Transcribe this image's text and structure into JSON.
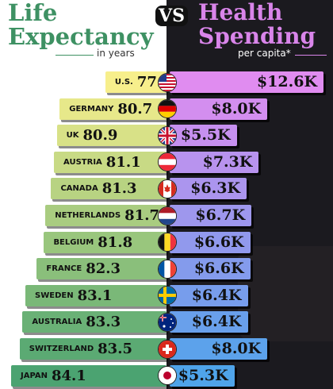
{
  "titles": {
    "left_line1": "Life",
    "left_line2": "Expectancy",
    "left_sub": "in years",
    "vs": "VS",
    "right_line1": "Health",
    "right_line2": "Spending",
    "right_sub": "per capita*"
  },
  "colors": {
    "spend_gradient_top": "#e08cf0",
    "spend_gradient_bottom": "#4fa4ea",
    "le_gradient_top": "#f7ef8c",
    "le_gradient_bottom": "#4ba371"
  },
  "chart_data": {
    "type": "bar",
    "categories": [
      "U.S.",
      "GERMANY",
      "UK",
      "AUSTRIA",
      "CANADA",
      "NETHERLANDS",
      "BELGIUM",
      "FRANCE",
      "SWEDEN",
      "AUSTRALIA",
      "SWITZERLAND",
      "JAPAN"
    ],
    "flags": [
      "us-flag-icon",
      "germany-flag-icon",
      "uk-flag-icon",
      "austria-flag-icon",
      "canada-flag-icon",
      "netherlands-flag-icon",
      "belgium-flag-icon",
      "france-flag-icon",
      "sweden-flag-icon",
      "australia-flag-icon",
      "switzerland-flag-icon",
      "japan-flag-icon"
    ],
    "series": [
      {
        "name": "Life Expectancy",
        "values": [
          77.5,
          80.7,
          80.9,
          81.1,
          81.3,
          81.7,
          81.8,
          82.3,
          83.1,
          83.3,
          83.5,
          84.1
        ],
        "labels": [
          "77.5",
          "80.7",
          "80.9",
          "81.1",
          "81.3",
          "81.7",
          "81.8",
          "82.3",
          "83.1",
          "83.3",
          "83.5",
          "84.1"
        ]
      },
      {
        "name": "Health Spending",
        "values": [
          12.6,
          8.0,
          5.5,
          7.3,
          6.3,
          6.7,
          6.6,
          6.6,
          6.4,
          6.4,
          8.0,
          5.3
        ],
        "labels": [
          "$12.6K",
          "$8.0K",
          "$5.5K",
          "$7.3K",
          "$6.3K",
          "$6.7K",
          "$6.6K",
          "$6.6K",
          "$6.4K",
          "$6.4K",
          "$8.0K",
          "$5.3K"
        ]
      }
    ]
  }
}
